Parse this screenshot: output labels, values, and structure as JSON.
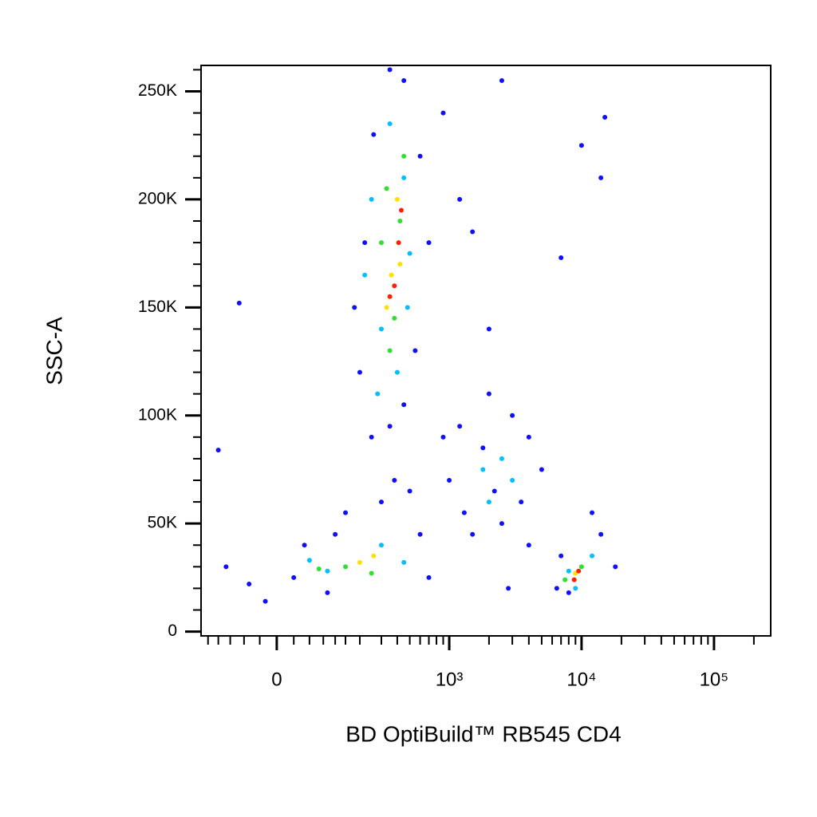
{
  "chart_data": {
    "type": "scatter",
    "x_label": "BD OptiBuild™ RB545 CD4",
    "y_label": "SSC-A",
    "xscale": "asinh",
    "xscale_cofactor": 100,
    "xlim": [
      -173,
      268000
    ],
    "ylim": [
      -2000,
      262000
    ],
    "xticks": [
      0,
      {
        "value": 1000,
        "label": "10³"
      },
      {
        "value": 10000,
        "label": "10⁴"
      },
      {
        "value": 100000,
        "label": "10⁵"
      }
    ],
    "xminorticks": [
      -150,
      -120,
      -90,
      -60,
      -30,
      30,
      60,
      90,
      120,
      150,
      200,
      300,
      400,
      500,
      600,
      700,
      800,
      900,
      2000,
      3000,
      4000,
      5000,
      6000,
      7000,
      8000,
      9000,
      20000,
      30000,
      40000,
      50000,
      60000,
      70000,
      80000,
      90000,
      200000
    ],
    "yticks": [
      0,
      {
        "value": 50000,
        "label": "50K"
      },
      {
        "value": 100000,
        "label": "100K"
      },
      {
        "value": 150000,
        "label": "150K"
      },
      {
        "value": 200000,
        "label": "200K"
      },
      {
        "value": 250000,
        "label": "250K"
      }
    ],
    "yminorticks": [
      10000,
      20000,
      30000,
      40000,
      60000,
      70000,
      80000,
      90000,
      110000,
      120000,
      130000,
      140000,
      160000,
      170000,
      180000,
      190000,
      210000,
      220000,
      230000,
      240000,
      260000
    ],
    "series": [
      {
        "color": "#1010ff",
        "x": [
          -100,
          -50,
          50,
          100,
          700,
          600,
          150,
          300,
          250,
          200,
          180,
          220,
          260,
          600,
          700,
          550,
          450,
          350,
          900,
          1200,
          1000,
          1300,
          1500,
          2500,
          3500,
          4000,
          3000,
          2000,
          1800,
          5000,
          2200,
          6500,
          7000,
          14000,
          18000,
          12000,
          8000,
          2500,
          10000,
          15000,
          14000,
          7000,
          1500,
          2000,
          -120,
          -70,
          900,
          450,
          350,
          1200,
          380,
          120,
          500,
          4000,
          2800,
          -20,
          30
        ],
        "values": [
          30000,
          22000,
          40000,
          18000,
          25000,
          45000,
          55000,
          60000,
          90000,
          120000,
          150000,
          180000,
          230000,
          220000,
          180000,
          130000,
          105000,
          95000,
          90000,
          95000,
          70000,
          55000,
          45000,
          50000,
          60000,
          90000,
          100000,
          110000,
          85000,
          75000,
          65000,
          20000,
          35000,
          45000,
          30000,
          55000,
          18000,
          255000,
          225000,
          238000,
          210000,
          173000,
          185000,
          140000,
          84000,
          152000,
          240000,
          255000,
          260000,
          200000,
          70000,
          45000,
          65000,
          40000,
          20000,
          14000,
          25000
        ]
      },
      {
        "color": "#00c0ff",
        "x": [
          300,
          250,
          450,
          400,
          500,
          350,
          280,
          100,
          300,
          450,
          60,
          1800,
          2500,
          2000,
          3000,
          8000,
          12000,
          9000,
          220,
          480
        ],
        "values": [
          140000,
          200000,
          210000,
          120000,
          175000,
          235000,
          110000,
          28000,
          40000,
          32000,
          33000,
          75000,
          80000,
          60000,
          70000,
          28000,
          35000,
          20000,
          165000,
          150000
        ]
      },
      {
        "color": "#30e030",
        "x": [
          350,
          420,
          300,
          450,
          380,
          150,
          250,
          80,
          10000,
          7500,
          330
        ],
        "values": [
          130000,
          190000,
          180000,
          220000,
          145000,
          30000,
          27000,
          29000,
          30000,
          24000,
          205000
        ]
      },
      {
        "color": "#ffe000",
        "x": [
          360,
          420,
          330,
          400,
          200,
          260,
          9000
        ],
        "values": [
          165000,
          170000,
          150000,
          200000,
          32000,
          35000,
          27000
        ]
      },
      {
        "color": "#ff2000",
        "x": [
          380,
          410,
          350,
          430,
          8800,
          9500
        ],
        "values": [
          160000,
          180000,
          155000,
          195000,
          24000,
          28000
        ]
      }
    ]
  }
}
